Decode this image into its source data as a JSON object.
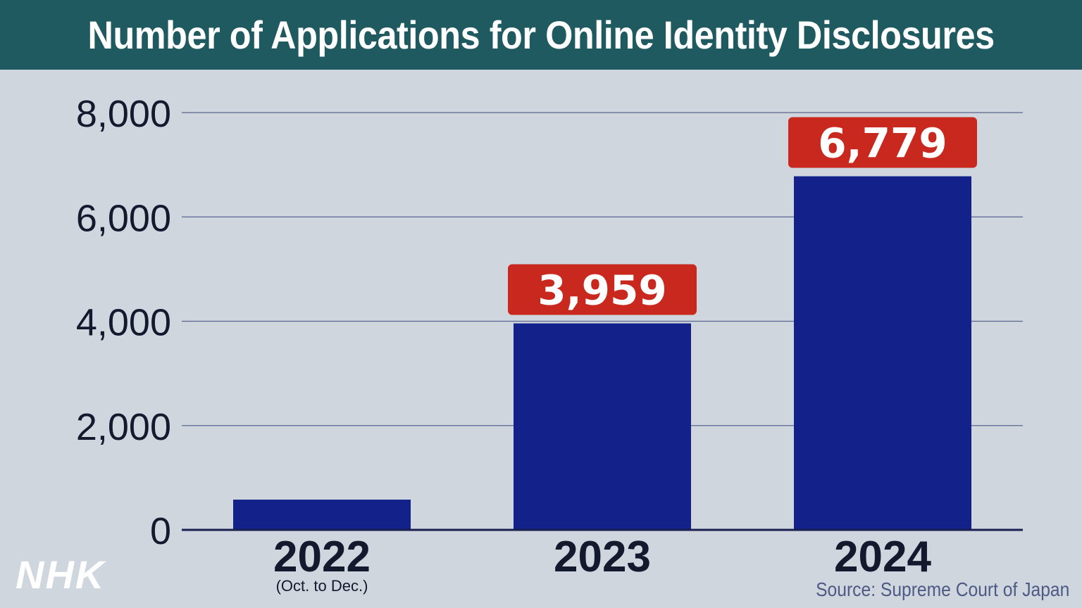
{
  "title": "Number of Applications for Online Identity Disclosures",
  "source": "Source: Supreme Court of Japan",
  "logo": "NHK",
  "colors": {
    "header_bg": "#1f5a60",
    "background": "#cfd6dd",
    "bar": "#13218a",
    "label_badge": "#c8281e",
    "grid": "#5a6690",
    "text": "#141a2e"
  },
  "chart_data": {
    "type": "bar",
    "categories": [
      "2022",
      "2023",
      "2024"
    ],
    "category_notes": [
      "(Oct. to Dec.)",
      "",
      ""
    ],
    "values": [
      580,
      3959,
      6779
    ],
    "data_labels": [
      "",
      "3,959",
      "6,779"
    ],
    "yticks": [
      "0",
      "2,000",
      "4,000",
      "6,000",
      "8,000"
    ],
    "ylim": [
      0,
      8000
    ],
    "grid": true,
    "title": "Number of Applications for Online Identity Disclosures"
  }
}
